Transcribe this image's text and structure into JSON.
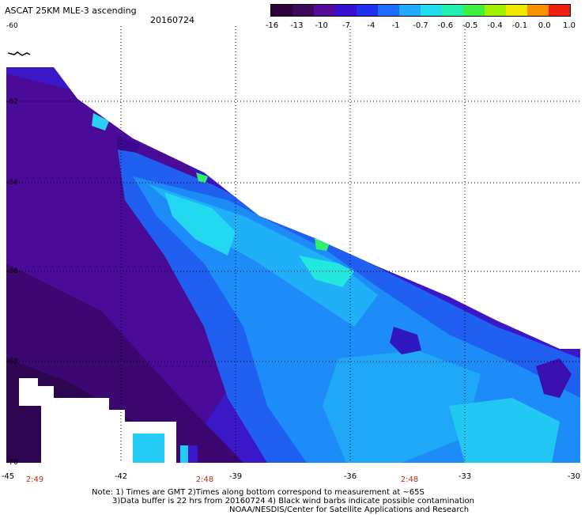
{
  "header": {
    "title": "ASCAT 25KM MLE-3 ascending",
    "date": "20160724"
  },
  "colorbar": {
    "labels": [
      "-16",
      "-13",
      "-10",
      "-7",
      "-4",
      "-1",
      "-0.7",
      "-0.6",
      "-0.5",
      "-0.4",
      "-0.1",
      "0.0",
      "1.0"
    ],
    "colors": [
      "#2a0036",
      "#3c0a5a",
      "#560a9a",
      "#3a10d0",
      "#2030f0",
      "#1d6cff",
      "#22aaff",
      "#22dcf0",
      "#20f0b0",
      "#40f040",
      "#a0f000",
      "#f0e800",
      "#f89000",
      "#f02010"
    ]
  },
  "map": {
    "lat_labels": [
      "-60",
      "-62",
      "-64",
      "-66",
      "-68",
      "-70"
    ],
    "lon_labels": [
      "-45",
      "-42",
      "-39",
      "-36",
      "-33",
      "-30"
    ],
    "time_labels": [
      "2:49",
      "2:48",
      "2:48"
    ]
  },
  "notes": {
    "line1": "Note: 1) Times are GMT 2)Times along bottom correspond to measurement at ~65S",
    "line2": "3)Data buffer is 22 hrs from 20160724 4) Black wind barbs indicate possible contamination",
    "credit": "NOAA/NESDIS/Center for Satellite Applications and Research"
  }
}
